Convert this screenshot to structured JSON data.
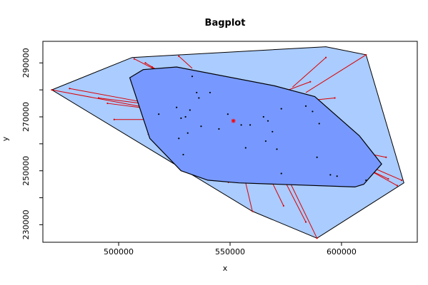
{
  "chart_data": {
    "type": "scatter",
    "title": "Bagplot",
    "xlabel": "x",
    "ylabel": "y",
    "xlim": [
      466000,
      634000
    ],
    "ylim": [
      223500,
      298000
    ],
    "x_ticks": [
      500000,
      550000,
      600000
    ],
    "x_tick_labels": [
      "500000",
      "550000",
      "600000"
    ],
    "y_ticks": [
      230000,
      250000,
      270000,
      290000
    ],
    "y_tick_labels": [
      "230000",
      "250000",
      "270000",
      "290000"
    ],
    "y_minor_ticks": [
      240000,
      260000,
      280000
    ],
    "grid": false,
    "colors": {
      "loop": "#aaccff",
      "bag": "#7799ff",
      "whisker": "#dd0000",
      "outline": "#000000",
      "center": "#ff0000",
      "points": "#000000"
    },
    "center": {
      "x": 551500,
      "y": 268500
    },
    "loop": [
      {
        "x": 470000,
        "y": 280000
      },
      {
        "x": 506000,
        "y": 292000
      },
      {
        "x": 593000,
        "y": 296000
      },
      {
        "x": 611000,
        "y": 293000
      },
      {
        "x": 628000,
        "y": 245500
      },
      {
        "x": 589000,
        "y": 225000
      },
      {
        "x": 560000,
        "y": 235000
      },
      {
        "x": 470000,
        "y": 280000
      }
    ],
    "bag": [
      {
        "x": 505000,
        "y": 284500
      },
      {
        "x": 511000,
        "y": 287500
      },
      {
        "x": 526000,
        "y": 288500
      },
      {
        "x": 570000,
        "y": 281500
      },
      {
        "x": 588000,
        "y": 277500
      },
      {
        "x": 608000,
        "y": 263000
      },
      {
        "x": 618000,
        "y": 252500
      },
      {
        "x": 610000,
        "y": 245000
      },
      {
        "x": 606000,
        "y": 244000
      },
      {
        "x": 554000,
        "y": 245500
      },
      {
        "x": 540000,
        "y": 246500
      },
      {
        "x": 528000,
        "y": 250000
      },
      {
        "x": 514000,
        "y": 262000
      },
      {
        "x": 505000,
        "y": 284500
      }
    ],
    "whiskers": [
      {
        "x1": 470000,
        "y1": 280000,
        "x2": 512000,
        "y2": 273500
      },
      {
        "x1": 478000,
        "y1": 280500,
        "x2": 514000,
        "y2": 275000
      },
      {
        "x1": 491000,
        "y1": 277000,
        "x2": 515000,
        "y2": 274500
      },
      {
        "x1": 495000,
        "y1": 275000,
        "x2": 514000,
        "y2": 273000
      },
      {
        "x1": 498000,
        "y1": 269000,
        "x2": 512000,
        "y2": 269000
      },
      {
        "x1": 507000,
        "y1": 291500,
        "x2": 520000,
        "y2": 286000
      },
      {
        "x1": 512000,
        "y1": 290000,
        "x2": 521000,
        "y2": 285500
      },
      {
        "x1": 515000,
        "y1": 288500,
        "x2": 520000,
        "y2": 285500
      },
      {
        "x1": 515000,
        "y1": 264000,
        "x2": 513000,
        "y2": 263500
      },
      {
        "x1": 527000,
        "y1": 292500,
        "x2": 533000,
        "y2": 288000
      },
      {
        "x1": 586000,
        "y1": 283000,
        "x2": 573000,
        "y2": 279000
      },
      {
        "x1": 593000,
        "y1": 292000,
        "x2": 578000,
        "y2": 281000
      },
      {
        "x1": 611000,
        "y1": 293000,
        "x2": 584000,
        "y2": 279000
      },
      {
        "x1": 597000,
        "y1": 277000,
        "x2": 585000,
        "y2": 276000
      },
      {
        "x1": 620000,
        "y1": 255000,
        "x2": 611000,
        "y2": 256500
      },
      {
        "x1": 627000,
        "y1": 246500,
        "x2": 613000,
        "y2": 251500
      },
      {
        "x1": 625000,
        "y1": 244500,
        "x2": 613000,
        "y2": 250000
      },
      {
        "x1": 621000,
        "y1": 247000,
        "x2": 612000,
        "y2": 250500
      },
      {
        "x1": 589000,
        "y1": 225000,
        "x2": 577000,
        "y2": 245500
      },
      {
        "x1": 584000,
        "y1": 231000,
        "x2": 575000,
        "y2": 245500
      },
      {
        "x1": 574000,
        "y1": 237000,
        "x2": 569000,
        "y2": 245500
      },
      {
        "x1": 560000,
        "y1": 235000,
        "x2": 557000,
        "y2": 245500
      },
      {
        "x1": 527000,
        "y1": 255500,
        "x2": 529000,
        "y2": 250000
      },
      {
        "x1": 533000,
        "y1": 253500,
        "x2": 535000,
        "y2": 248500
      },
      {
        "x1": 550000,
        "y1": 246000,
        "x2": 549000,
        "y2": 245500
      }
    ],
    "points": [
      {
        "x": 526000,
        "y": 273500
      },
      {
        "x": 533000,
        "y": 285000
      },
      {
        "x": 535000,
        "y": 279000
      },
      {
        "x": 536000,
        "y": 277000
      },
      {
        "x": 541000,
        "y": 279000
      },
      {
        "x": 530000,
        "y": 270000
      },
      {
        "x": 532000,
        "y": 272500
      },
      {
        "x": 528000,
        "y": 269500
      },
      {
        "x": 531000,
        "y": 264000
      },
      {
        "x": 527000,
        "y": 262000
      },
      {
        "x": 537000,
        "y": 266500
      },
      {
        "x": 545000,
        "y": 265500
      },
      {
        "x": 549000,
        "y": 271000
      },
      {
        "x": 555000,
        "y": 267000
      },
      {
        "x": 559000,
        "y": 267000
      },
      {
        "x": 565000,
        "y": 270000
      },
      {
        "x": 567000,
        "y": 268500
      },
      {
        "x": 569000,
        "y": 264500
      },
      {
        "x": 566000,
        "y": 261000
      },
      {
        "x": 573000,
        "y": 273000
      },
      {
        "x": 584000,
        "y": 274000
      },
      {
        "x": 587000,
        "y": 272000
      },
      {
        "x": 590000,
        "y": 267500
      },
      {
        "x": 571000,
        "y": 258000
      },
      {
        "x": 557000,
        "y": 258500
      },
      {
        "x": 573000,
        "y": 249000
      },
      {
        "x": 589000,
        "y": 255000
      },
      {
        "x": 595000,
        "y": 248500
      },
      {
        "x": 598000,
        "y": 248000
      },
      {
        "x": 611000,
        "y": 246500
      },
      {
        "x": 518000,
        "y": 271000
      },
      {
        "x": 529000,
        "y": 256000
      }
    ]
  }
}
